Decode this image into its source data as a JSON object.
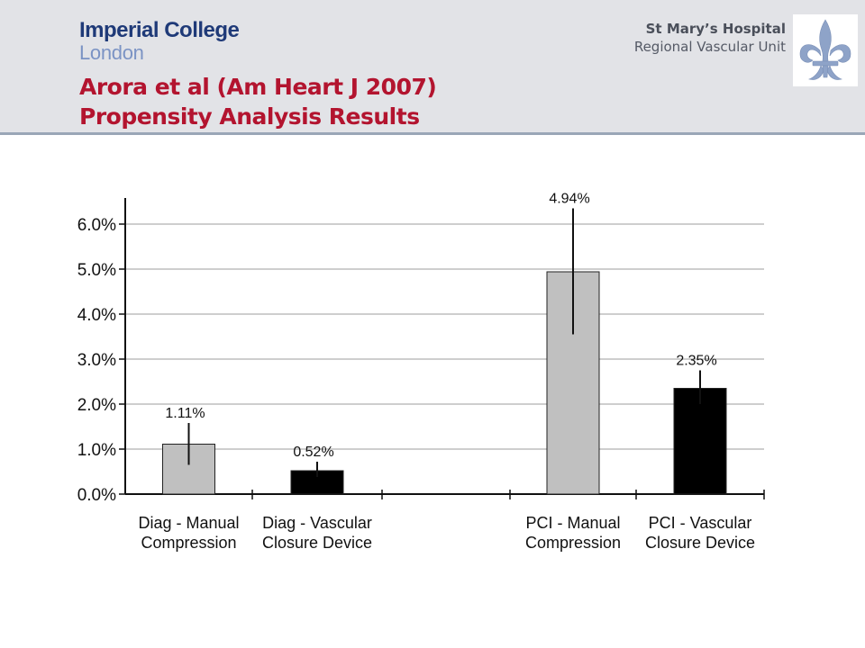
{
  "header": {
    "logo_line1": "Imperial College",
    "logo_line2": "London",
    "title_line1": "Arora et al (Am Heart J 2007)",
    "title_line2": "Propensity Analysis Results",
    "hospital_name": "St Mary’s Hospital",
    "hospital_unit": "Regional Vascular Unit",
    "emblem_icon": "fleur-de-lis-icon",
    "colors": {
      "title": "#b3142f",
      "logo": "#1f3a78",
      "logo_light": "#7b93c4",
      "emblem": "#8ea3c8"
    }
  },
  "chart_data": {
    "type": "bar",
    "categories": [
      [
        "Diag - Manual",
        "Compression"
      ],
      [
        "Diag - Vascular",
        "Closure Device"
      ],
      [
        "PCI - Manual",
        "Compression"
      ],
      [
        "PCI - Vascular",
        "Closure Device"
      ]
    ],
    "values": [
      1.11,
      0.52,
      4.94,
      2.35
    ],
    "value_labels": [
      "1.11%",
      "0.52%",
      "4.94%",
      "2.35%"
    ],
    "error_low": [
      0.65,
      0.38,
      3.55,
      2.0
    ],
    "error_high": [
      1.58,
      0.72,
      6.35,
      2.75
    ],
    "bar_colors": [
      "#c0c0c0",
      "#000000",
      "#c0c0c0",
      "#000000"
    ],
    "ylim": [
      0,
      6
    ],
    "yticks": [
      0,
      1,
      2,
      3,
      4,
      5,
      6
    ],
    "ytick_labels": [
      "0.0%",
      "1.0%",
      "2.0%",
      "3.0%",
      "4.0%",
      "5.0%",
      "6.0%"
    ],
    "grid": true,
    "title": "",
    "xlabel": "",
    "ylabel": ""
  }
}
